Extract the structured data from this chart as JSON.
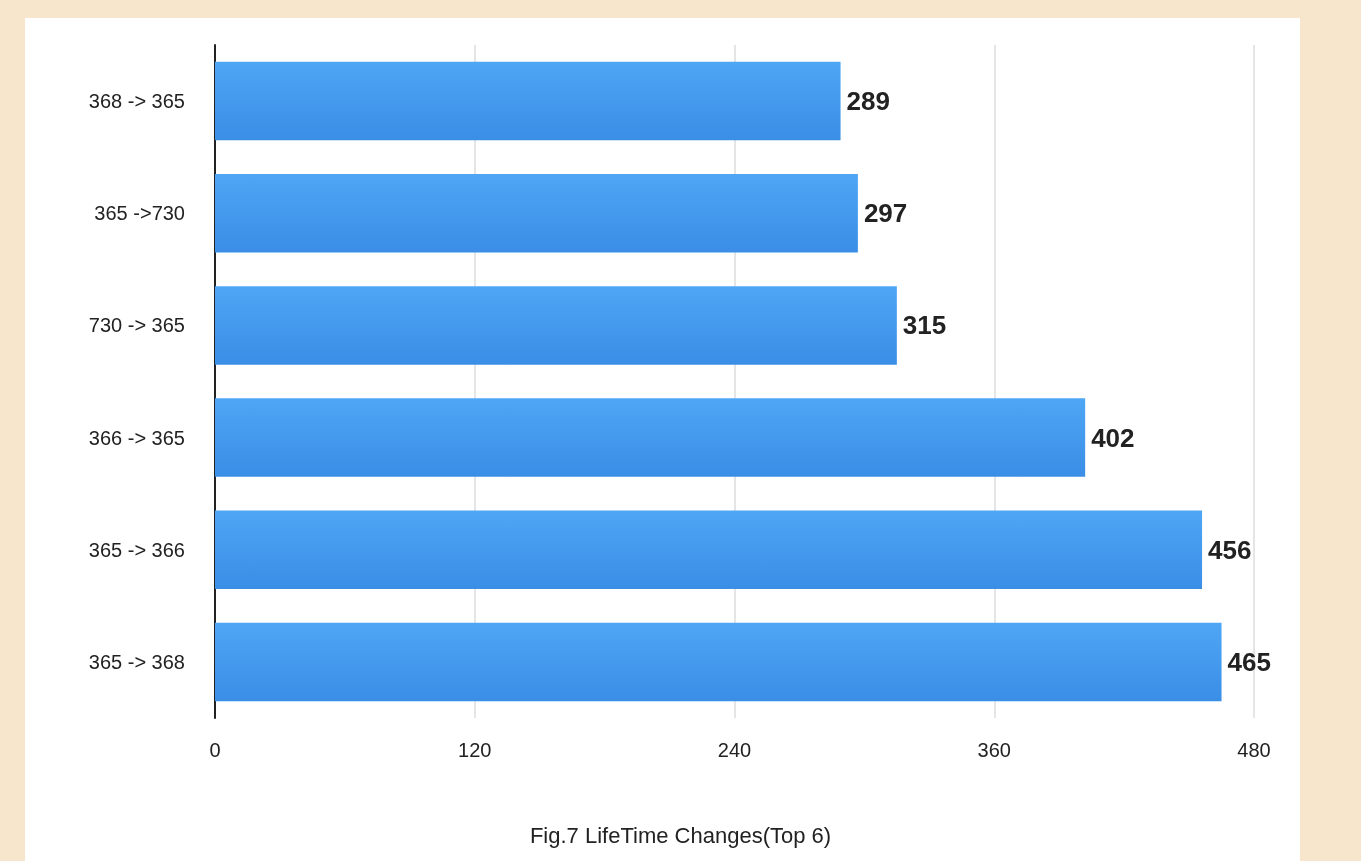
{
  "chart_data": {
    "type": "bar",
    "orientation": "horizontal",
    "title": "Fig.7 LifeTime Changes(Top 6)",
    "categories": [
      "368 -> 365",
      "365 ->730",
      "730 -> 365",
      "366 -> 365",
      "365 -> 366",
      "365 -> 368"
    ],
    "values": [
      289,
      297,
      315,
      402,
      456,
      465
    ],
    "color": "#3a8ee6",
    "xlim": [
      0,
      480
    ],
    "xticks": [
      0,
      120,
      240,
      360,
      480
    ],
    "grid": "x",
    "data_labels": true
  }
}
